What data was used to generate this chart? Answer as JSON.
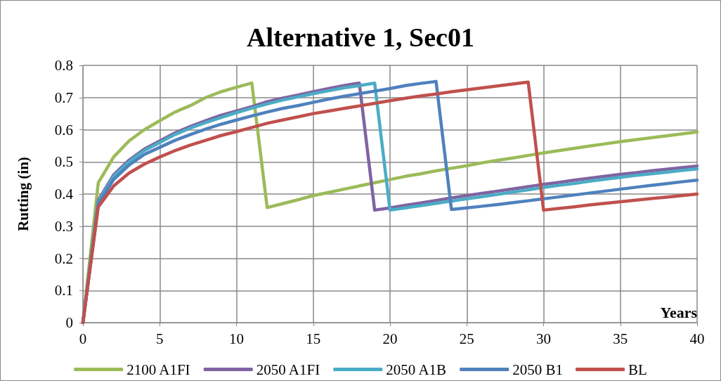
{
  "chart_data": {
    "type": "line",
    "title": "Alternative 1, Sec01",
    "xlabel": "Years",
    "ylabel": "Rutting (in)",
    "x": [
      0,
      1,
      2,
      3,
      4,
      5,
      6,
      7,
      8,
      9,
      10,
      11,
      12,
      13,
      14,
      15,
      16,
      17,
      18,
      19,
      20,
      21,
      22,
      23,
      24,
      25,
      26,
      27,
      28,
      29,
      30,
      31,
      32,
      33,
      34,
      35,
      36,
      37,
      38,
      39,
      40
    ],
    "series": [
      {
        "name": "2100 A1FI",
        "color": "#9bbb59",
        "values": [
          0,
          0.435,
          0.515,
          0.565,
          0.6,
          0.628,
          0.655,
          0.675,
          0.7,
          0.718,
          0.732,
          0.745,
          0.358,
          0.37,
          0.382,
          0.395,
          0.405,
          0.415,
          0.425,
          0.435,
          0.445,
          0.455,
          0.463,
          0.472,
          0.48,
          0.488,
          0.497,
          0.505,
          0.512,
          0.52,
          0.528,
          0.535,
          0.542,
          0.549,
          0.556,
          0.563,
          0.569,
          0.575,
          0.581,
          0.587,
          0.593
        ]
      },
      {
        "name": "2050 A1FI",
        "color": "#8064a2",
        "values": [
          0,
          0.38,
          0.46,
          0.505,
          0.54,
          0.565,
          0.59,
          0.61,
          0.628,
          0.645,
          0.658,
          0.672,
          0.687,
          0.698,
          0.708,
          0.718,
          0.728,
          0.737,
          0.745,
          0.35,
          0.357,
          0.365,
          0.372,
          0.38,
          0.388,
          0.395,
          0.402,
          0.409,
          0.416,
          0.423,
          0.43,
          0.436,
          0.443,
          0.449,
          0.455,
          0.461,
          0.466,
          0.472,
          0.477,
          0.482,
          0.487
        ]
      },
      {
        "name": "2050 A1B",
        "color": "#4bacc6",
        "values": [
          0,
          0.375,
          0.455,
          0.5,
          0.535,
          0.56,
          0.585,
          0.605,
          0.622,
          0.638,
          0.653,
          0.667,
          0.68,
          0.692,
          0.702,
          0.712,
          0.721,
          0.73,
          0.737,
          0.745,
          0.35,
          0.357,
          0.364,
          0.371,
          0.378,
          0.385,
          0.392,
          0.399,
          0.406,
          0.413,
          0.42,
          0.427,
          0.433,
          0.44,
          0.446,
          0.452,
          0.458,
          0.463,
          0.468,
          0.473,
          0.478
        ]
      },
      {
        "name": "2050 B1",
        "color": "#4f81bd",
        "values": [
          0,
          0.37,
          0.445,
          0.49,
          0.523,
          0.545,
          0.567,
          0.585,
          0.602,
          0.617,
          0.63,
          0.643,
          0.655,
          0.666,
          0.675,
          0.685,
          0.695,
          0.704,
          0.712,
          0.72,
          0.728,
          0.737,
          0.744,
          0.75,
          0.352,
          0.357,
          0.362,
          0.367,
          0.373,
          0.379,
          0.385,
          0.391,
          0.397,
          0.403,
          0.409,
          0.415,
          0.421,
          0.427,
          0.432,
          0.438,
          0.443
        ]
      },
      {
        "name": "BL",
        "color": "#c0504d",
        "values": [
          0,
          0.36,
          0.425,
          0.465,
          0.493,
          0.515,
          0.535,
          0.552,
          0.567,
          0.582,
          0.594,
          0.607,
          0.62,
          0.63,
          0.64,
          0.65,
          0.658,
          0.666,
          0.674,
          0.682,
          0.69,
          0.698,
          0.705,
          0.711,
          0.718,
          0.724,
          0.73,
          0.736,
          0.742,
          0.748,
          0.35,
          0.355,
          0.36,
          0.366,
          0.371,
          0.376,
          0.381,
          0.386,
          0.39,
          0.395,
          0.4
        ]
      }
    ],
    "xlim": [
      0,
      40
    ],
    "xticks": [
      0,
      5,
      10,
      15,
      20,
      25,
      30,
      35,
      40
    ],
    "ylim": [
      0,
      0.8
    ],
    "yticks": [
      0,
      0.1,
      0.2,
      0.3,
      0.4,
      0.5,
      0.6,
      0.7,
      0.8
    ],
    "grid": true,
    "legend": "bottom",
    "marker": "none",
    "line_style": "solid"
  }
}
